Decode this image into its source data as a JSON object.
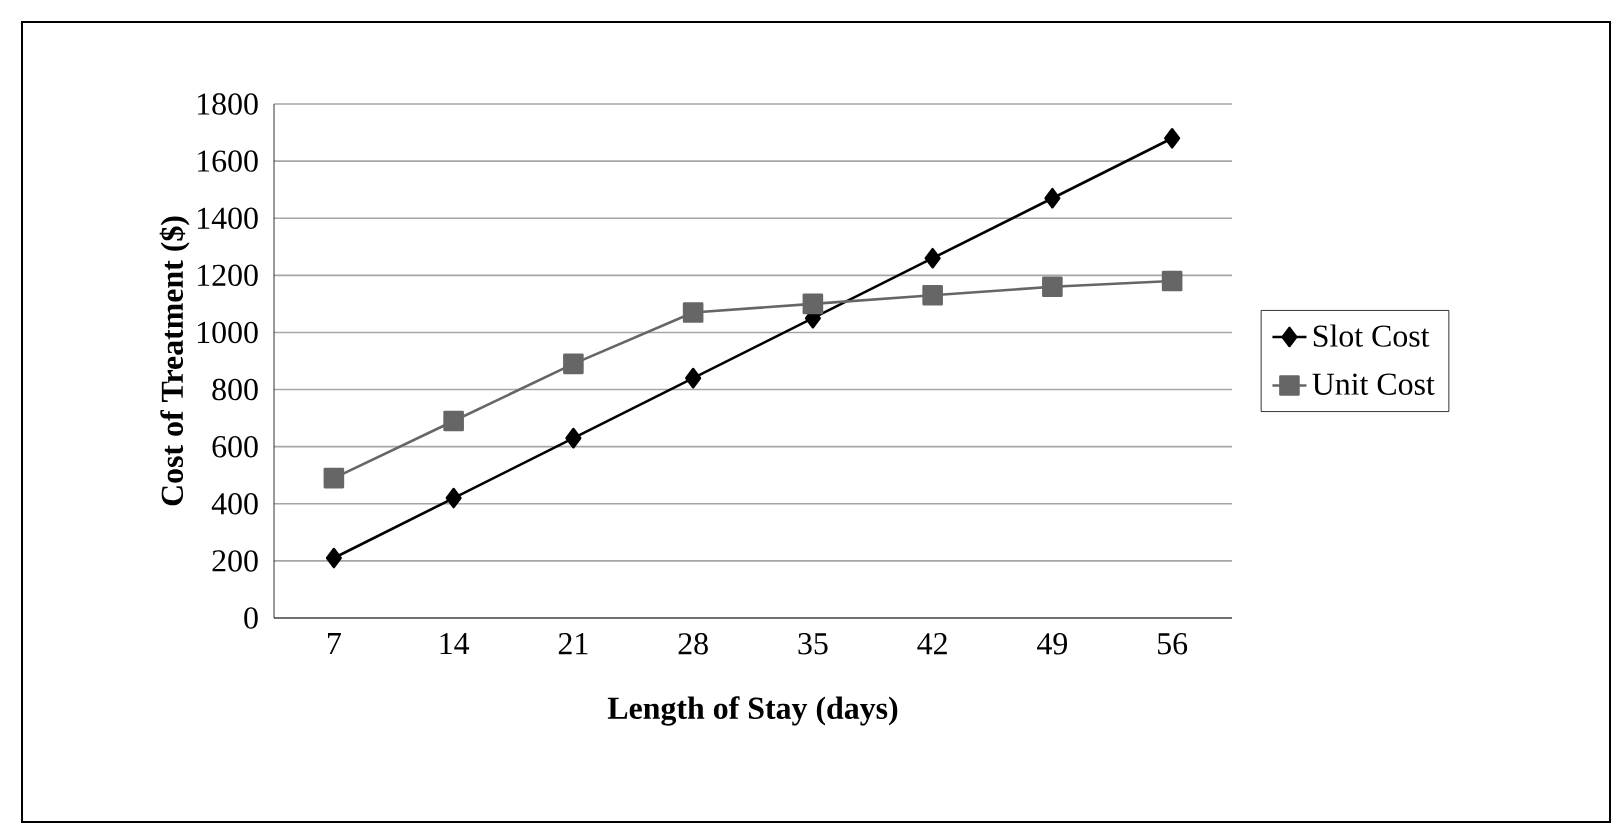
{
  "chart_data": {
    "type": "line",
    "xlabel": "Length of Stay (days)",
    "ylabel": "Cost of Treatment ($)",
    "categories": [
      "7",
      "14",
      "21",
      "28",
      "35",
      "42",
      "49",
      "56"
    ],
    "series": [
      {
        "name": "Slot Cost",
        "color": "#000000",
        "marker": "diamond",
        "values": [
          210,
          420,
          630,
          840,
          1050,
          1260,
          1470,
          1680
        ]
      },
      {
        "name": "Unit Cost",
        "color": "#666666",
        "marker": "square",
        "values": [
          490,
          690,
          890,
          1070,
          1100,
          1130,
          1160,
          1180
        ]
      }
    ],
    "ylim": [
      0,
      1800
    ],
    "yticks": [
      0,
      200,
      400,
      600,
      800,
      1000,
      1200,
      1400,
      1600,
      1800
    ],
    "grid": "y",
    "legend": "right",
    "line_style": "solid"
  }
}
